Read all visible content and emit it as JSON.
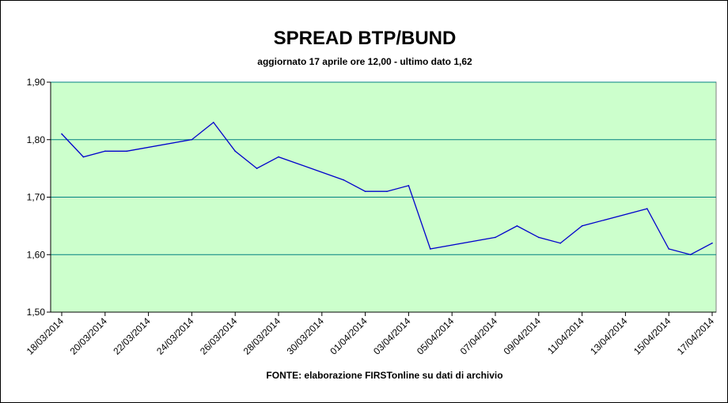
{
  "chart_data": {
    "type": "line",
    "title": "SPREAD BTP/BUND",
    "subtitle": "aggiornato 17 aprile ore 12,00 - ultimo dato 1,62",
    "source": "FONTE: elaborazione FIRSTonline su dati di archivio",
    "xlabel": "",
    "ylabel": "",
    "ylim": [
      1.5,
      1.9
    ],
    "yticks": [
      "1,50",
      "1,60",
      "1,70",
      "1,80",
      "1,90"
    ],
    "xticks": [
      "18/03/2014",
      "20/03/2014",
      "22/03/2014",
      "24/03/2014",
      "26/03/2014",
      "28/03/2014",
      "30/03/2014",
      "01/04/2014",
      "03/04/2014",
      "05/04/2014",
      "07/04/2014",
      "09/04/2014",
      "11/04/2014",
      "13/04/2014",
      "15/04/2014",
      "17/04/2014"
    ],
    "grid": "horizontal",
    "legend": "none",
    "colors": {
      "plot_background": "#ccffcc",
      "line": "#0000cc",
      "grid": "#008080"
    },
    "series": [
      {
        "x": [
          "18/03/2014",
          "19/03/2014",
          "20/03/2014",
          "21/03/2014",
          "24/03/2014",
          "25/03/2014",
          "26/03/2014",
          "27/03/2014",
          "28/03/2014",
          "31/03/2014",
          "01/04/2014",
          "02/04/2014",
          "03/04/2014",
          "04/04/2014",
          "07/04/2014",
          "08/04/2014",
          "09/04/2014",
          "10/04/2014",
          "11/04/2014",
          "14/04/2014",
          "15/04/2014",
          "16/04/2014",
          "17/04/2014"
        ],
        "values": [
          1.81,
          1.77,
          1.78,
          1.78,
          1.8,
          1.83,
          1.78,
          1.75,
          1.77,
          1.73,
          1.71,
          1.71,
          1.72,
          1.61,
          1.63,
          1.65,
          1.63,
          1.62,
          1.65,
          1.68,
          1.61,
          1.6,
          1.62
        ]
      }
    ]
  }
}
